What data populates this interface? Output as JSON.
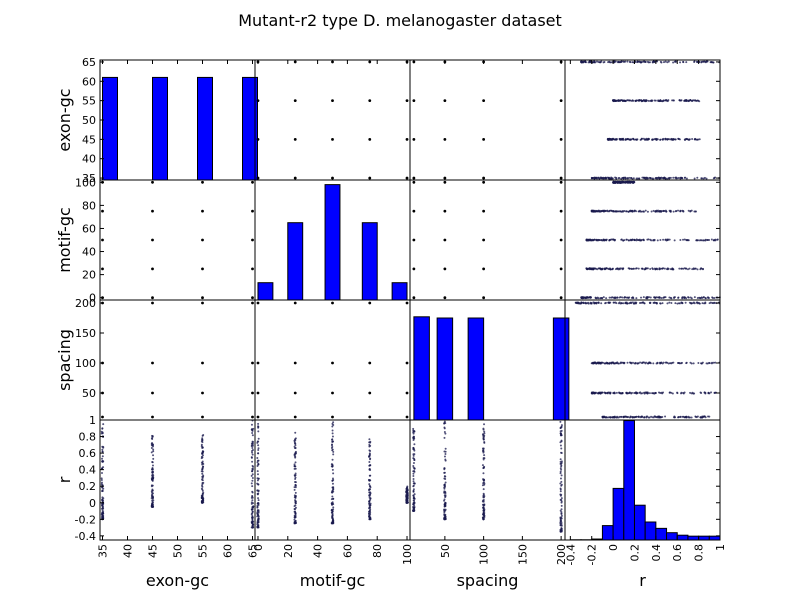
{
  "chart_data": {
    "type": "scatter_matrix",
    "title": "Mutant-r2 type D. melanogaster dataset",
    "variables": [
      "exon-gc",
      "motif-gc",
      "spacing",
      "r"
    ],
    "ranges": {
      "exon-gc": [
        34.5,
        65.5
      ],
      "motif-gc": [
        -2,
        102
      ],
      "spacing": [
        5,
        205
      ],
      "r": [
        -0.45,
        1.0
      ]
    },
    "ticks": {
      "exon-gc": [
        35,
        40,
        45,
        50,
        55,
        60,
        65
      ],
      "motif-gc": [
        0,
        20,
        40,
        60,
        80,
        100
      ],
      "spacing": [
        0,
        50,
        100,
        150,
        200
      ],
      "r": [
        -0.4,
        -0.2,
        0.0,
        0.2,
        0.4,
        0.6,
        0.8,
        1.0
      ]
    },
    "distinct_values": {
      "exon-gc": [
        35,
        45,
        55,
        65
      ],
      "motif-gc": [
        0,
        25,
        50,
        75,
        100
      ],
      "spacing": [
        10,
        50,
        100,
        200
      ]
    },
    "histograms": {
      "exon-gc": {
        "bins": [
          [
            35,
            38
          ],
          [
            45,
            48
          ],
          [
            54,
            57
          ],
          [
            63,
            66
          ]
        ],
        "counts": [
          61,
          61,
          61,
          61
        ],
        "ylim": [
          34.5,
          65.5
        ]
      },
      "motif-gc": {
        "bins": [
          [
            0,
            10
          ],
          [
            20,
            30
          ],
          [
            45,
            55
          ],
          [
            70,
            80
          ],
          [
            90,
            100
          ]
        ],
        "counts": [
          13,
          65,
          98,
          65,
          13
        ],
        "ylim": [
          -2,
          102
        ]
      },
      "spacing": {
        "bins": [
          [
            10,
            30
          ],
          [
            40,
            60
          ],
          [
            80,
            100
          ],
          [
            190,
            210
          ]
        ],
        "counts": [
          177,
          175,
          175,
          175
        ],
        "ylim": [
          5,
          205
        ]
      },
      "r": {
        "bins": [
          [
            -0.4,
            -0.3
          ],
          [
            -0.3,
            -0.2
          ],
          [
            -0.2,
            -0.1
          ],
          [
            -0.1,
            0.0
          ],
          [
            0.0,
            0.1
          ],
          [
            0.1,
            0.2
          ],
          [
            0.2,
            0.3
          ],
          [
            0.3,
            0.4
          ],
          [
            0.4,
            0.5
          ],
          [
            0.5,
            0.6
          ],
          [
            0.6,
            0.7
          ],
          [
            0.7,
            0.8
          ],
          [
            0.8,
            0.9
          ],
          [
            0.9,
            1.0
          ]
        ],
        "counts": [
          0.02,
          0.02,
          0.08,
          1.2,
          4.3,
          9.95,
          2.9,
          1.5,
          0.97,
          0.61,
          0.4,
          0.32,
          0.32,
          0.32
        ],
        "ylim": [
          0,
          10
        ]
      }
    },
    "r_spread": {
      "by_exon-gc": [
        [
          35,
          -0.2,
          1.0
        ],
        [
          45,
          -0.05,
          0.82
        ],
        [
          55,
          0.0,
          0.82
        ],
        [
          65,
          -0.3,
          1.0
        ]
      ],
      "by_motif-gc": [
        [
          0,
          -0.3,
          1.0
        ],
        [
          25,
          -0.25,
          0.85
        ],
        [
          50,
          -0.25,
          1.0
        ],
        [
          75,
          -0.2,
          0.8
        ],
        [
          100,
          0.0,
          0.2
        ]
      ],
      "by_spacing": [
        [
          10,
          -0.1,
          0.9
        ],
        [
          50,
          -0.2,
          1.0
        ],
        [
          100,
          -0.2,
          1.0
        ],
        [
          200,
          -0.35,
          1.0
        ]
      ]
    },
    "grid": false,
    "legend": "none"
  }
}
